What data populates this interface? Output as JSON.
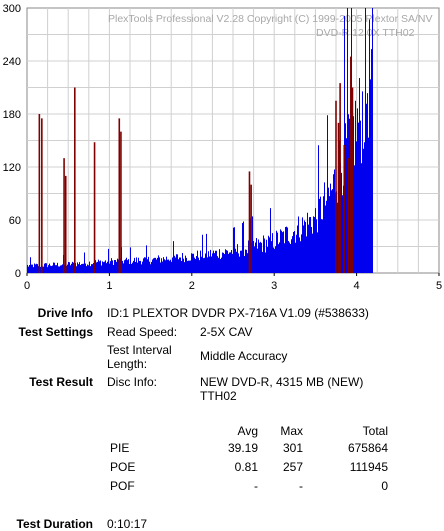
{
  "chart_data": {
    "type": "bar",
    "watermark": [
      "PlexTools Professional V2.28 Copyright (C) 1999-2005 Plextor SA/NV",
      "DVD-R    12.0X    TTH02"
    ],
    "x_ticks": [
      "0",
      "1",
      "2",
      "3",
      "4",
      "5"
    ],
    "y_ticks": [
      "0",
      "60",
      "120",
      "180",
      "240",
      "300"
    ],
    "xlim": [
      0,
      5
    ],
    "ylim": [
      0,
      300
    ],
    "grid": true,
    "series": [
      {
        "color": "#0000ee",
        "kind": "envelope",
        "x": [
          0.0,
          0.5,
          1.0,
          1.5,
          2.0,
          2.5,
          3.0,
          3.25,
          3.5,
          3.6,
          3.7,
          3.8,
          3.9,
          4.0,
          4.05,
          4.1,
          4.15,
          4.2
        ],
        "y": [
          10,
          12,
          16,
          18,
          23,
          30,
          44,
          58,
          75,
          95,
          112,
          150,
          182,
          200,
          215,
          235,
          268,
          292
        ]
      },
      {
        "color": "#800000",
        "kind": "spikes",
        "x": [
          0.15,
          0.18,
          0.45,
          0.47,
          0.58,
          0.82,
          1.12,
          1.14,
          2.7,
          2.72,
          3.75,
          3.78,
          3.8,
          3.85,
          3.9,
          3.93,
          3.95
        ],
        "y": [
          180,
          175,
          130,
          110,
          210,
          148,
          175,
          160,
          115,
          100,
          195,
          170,
          215,
          145,
          130,
          245,
          210
        ]
      }
    ]
  },
  "info": {
    "drive_info_label": "Drive Info",
    "drive_info_value": "ID:1 PLEXTOR DVDR PX-716A V1.09 (#538633)",
    "test_settings_label": "Test Settings",
    "read_speed_label": "Read Speed:",
    "read_speed_value": "2-5X CAV",
    "interval_label_1": "Test Interval",
    "interval_label_2": "Length:",
    "interval_value": "Middle Accuracy",
    "test_result_label": "Test Result",
    "disc_info_label": "Disc Info:",
    "disc_info_value_1": "NEW DVD-R, 4315 MB (NEW)",
    "disc_info_value_2": "TTH02",
    "test_duration_label": "Test Duration",
    "test_duration_value": "0:10:17"
  },
  "results": {
    "headers": [
      "Avg",
      "Max",
      "Total"
    ],
    "rows": [
      {
        "name": "PIE",
        "avg": "39.19",
        "max": "301",
        "total": "675864"
      },
      {
        "name": "POE",
        "avg": "0.81",
        "max": "257",
        "total": "111945"
      },
      {
        "name": "POF",
        "avg": "-",
        "max": "-",
        "total": "0"
      }
    ]
  }
}
